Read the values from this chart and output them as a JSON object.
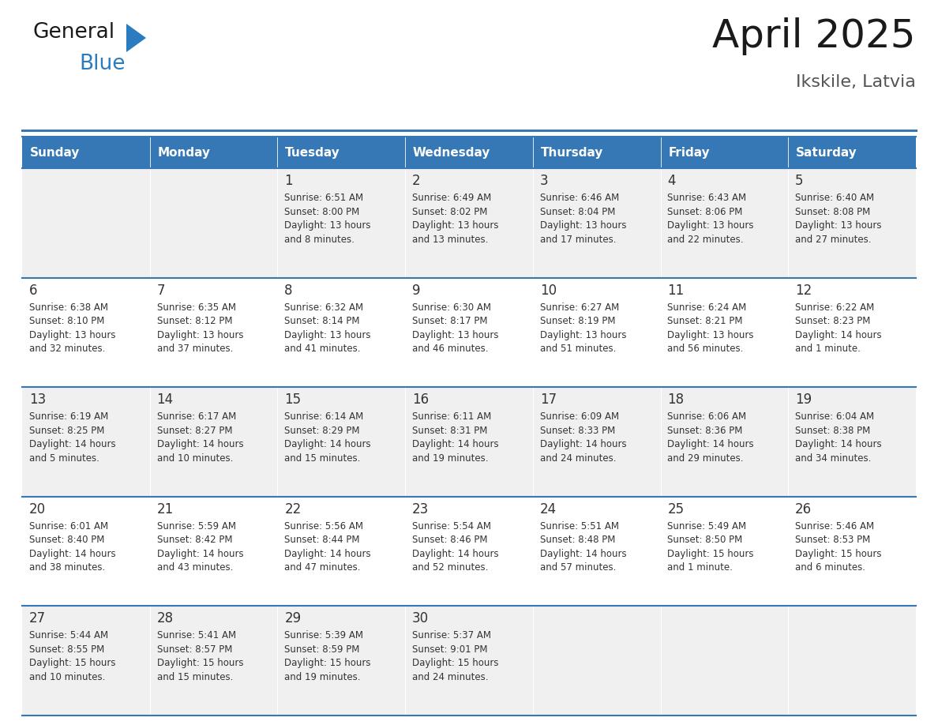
{
  "title": "April 2025",
  "subtitle": "Ikskile, Latvia",
  "header_color": "#3578b5",
  "header_text_color": "#ffffff",
  "cell_bg_odd": "#f0f0f0",
  "cell_bg_even": "#ffffff",
  "border_color": "#3578b5",
  "text_color": "#333333",
  "day_headers": [
    "Sunday",
    "Monday",
    "Tuesday",
    "Wednesday",
    "Thursday",
    "Friday",
    "Saturday"
  ],
  "weeks": [
    [
      {
        "day": "",
        "sunrise": "",
        "sunset": "",
        "daylight": ""
      },
      {
        "day": "",
        "sunrise": "",
        "sunset": "",
        "daylight": ""
      },
      {
        "day": "1",
        "sunrise": "6:51 AM",
        "sunset": "8:00 PM",
        "daylight": "13 hours\nand 8 minutes."
      },
      {
        "day": "2",
        "sunrise": "6:49 AM",
        "sunset": "8:02 PM",
        "daylight": "13 hours\nand 13 minutes."
      },
      {
        "day": "3",
        "sunrise": "6:46 AM",
        "sunset": "8:04 PM",
        "daylight": "13 hours\nand 17 minutes."
      },
      {
        "day": "4",
        "sunrise": "6:43 AM",
        "sunset": "8:06 PM",
        "daylight": "13 hours\nand 22 minutes."
      },
      {
        "day": "5",
        "sunrise": "6:40 AM",
        "sunset": "8:08 PM",
        "daylight": "13 hours\nand 27 minutes."
      }
    ],
    [
      {
        "day": "6",
        "sunrise": "6:38 AM",
        "sunset": "8:10 PM",
        "daylight": "13 hours\nand 32 minutes."
      },
      {
        "day": "7",
        "sunrise": "6:35 AM",
        "sunset": "8:12 PM",
        "daylight": "13 hours\nand 37 minutes."
      },
      {
        "day": "8",
        "sunrise": "6:32 AM",
        "sunset": "8:14 PM",
        "daylight": "13 hours\nand 41 minutes."
      },
      {
        "day": "9",
        "sunrise": "6:30 AM",
        "sunset": "8:17 PM",
        "daylight": "13 hours\nand 46 minutes."
      },
      {
        "day": "10",
        "sunrise": "6:27 AM",
        "sunset": "8:19 PM",
        "daylight": "13 hours\nand 51 minutes."
      },
      {
        "day": "11",
        "sunrise": "6:24 AM",
        "sunset": "8:21 PM",
        "daylight": "13 hours\nand 56 minutes."
      },
      {
        "day": "12",
        "sunrise": "6:22 AM",
        "sunset": "8:23 PM",
        "daylight": "14 hours\nand 1 minute."
      }
    ],
    [
      {
        "day": "13",
        "sunrise": "6:19 AM",
        "sunset": "8:25 PM",
        "daylight": "14 hours\nand 5 minutes."
      },
      {
        "day": "14",
        "sunrise": "6:17 AM",
        "sunset": "8:27 PM",
        "daylight": "14 hours\nand 10 minutes."
      },
      {
        "day": "15",
        "sunrise": "6:14 AM",
        "sunset": "8:29 PM",
        "daylight": "14 hours\nand 15 minutes."
      },
      {
        "day": "16",
        "sunrise": "6:11 AM",
        "sunset": "8:31 PM",
        "daylight": "14 hours\nand 19 minutes."
      },
      {
        "day": "17",
        "sunrise": "6:09 AM",
        "sunset": "8:33 PM",
        "daylight": "14 hours\nand 24 minutes."
      },
      {
        "day": "18",
        "sunrise": "6:06 AM",
        "sunset": "8:36 PM",
        "daylight": "14 hours\nand 29 minutes."
      },
      {
        "day": "19",
        "sunrise": "6:04 AM",
        "sunset": "8:38 PM",
        "daylight": "14 hours\nand 34 minutes."
      }
    ],
    [
      {
        "day": "20",
        "sunrise": "6:01 AM",
        "sunset": "8:40 PM",
        "daylight": "14 hours\nand 38 minutes."
      },
      {
        "day": "21",
        "sunrise": "5:59 AM",
        "sunset": "8:42 PM",
        "daylight": "14 hours\nand 43 minutes."
      },
      {
        "day": "22",
        "sunrise": "5:56 AM",
        "sunset": "8:44 PM",
        "daylight": "14 hours\nand 47 minutes."
      },
      {
        "day": "23",
        "sunrise": "5:54 AM",
        "sunset": "8:46 PM",
        "daylight": "14 hours\nand 52 minutes."
      },
      {
        "day": "24",
        "sunrise": "5:51 AM",
        "sunset": "8:48 PM",
        "daylight": "14 hours\nand 57 minutes."
      },
      {
        "day": "25",
        "sunrise": "5:49 AM",
        "sunset": "8:50 PM",
        "daylight": "15 hours\nand 1 minute."
      },
      {
        "day": "26",
        "sunrise": "5:46 AM",
        "sunset": "8:53 PM",
        "daylight": "15 hours\nand 6 minutes."
      }
    ],
    [
      {
        "day": "27",
        "sunrise": "5:44 AM",
        "sunset": "8:55 PM",
        "daylight": "15 hours\nand 10 minutes."
      },
      {
        "day": "28",
        "sunrise": "5:41 AM",
        "sunset": "8:57 PM",
        "daylight": "15 hours\nand 15 minutes."
      },
      {
        "day": "29",
        "sunrise": "5:39 AM",
        "sunset": "8:59 PM",
        "daylight": "15 hours\nand 19 minutes."
      },
      {
        "day": "30",
        "sunrise": "5:37 AM",
        "sunset": "9:01 PM",
        "daylight": "15 hours\nand 24 minutes."
      },
      {
        "day": "",
        "sunrise": "",
        "sunset": "",
        "daylight": ""
      },
      {
        "day": "",
        "sunrise": "",
        "sunset": "",
        "daylight": ""
      },
      {
        "day": "",
        "sunrise": "",
        "sunset": "",
        "daylight": ""
      }
    ]
  ],
  "logo_color_general": "#1a1a1a",
  "logo_color_blue": "#2b7bbf",
  "logo_triangle_color": "#2b7bbf",
  "title_fontsize": 36,
  "subtitle_fontsize": 16,
  "header_fontsize": 11,
  "day_num_fontsize": 12,
  "cell_text_fontsize": 8.5
}
